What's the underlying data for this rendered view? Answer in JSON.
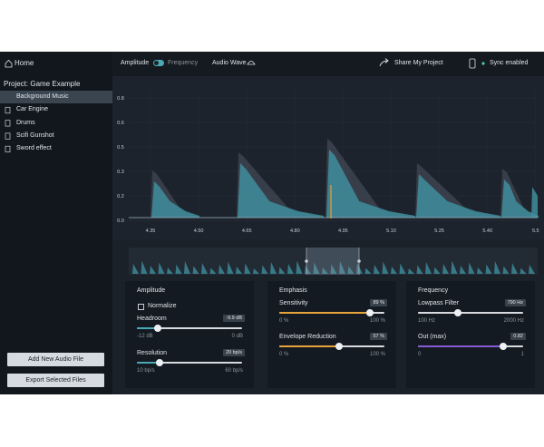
{
  "sidebar": {
    "home": "Home",
    "project": "Project: Game Example",
    "files": [
      "Background Music",
      "Car Engine",
      "Drums",
      "Scifi Gunshot",
      "Sword effect"
    ],
    "buttons": [
      "Add New Audio File",
      "Export Selected Files"
    ]
  },
  "toolbar": {
    "amplitude": "Amplitude",
    "frequency": "Frequency",
    "audio_wave": "Audio Wave",
    "share": "Share My Project",
    "sync": "Sync enabled"
  },
  "waveform": {
    "y_labels": [
      "0.8",
      "0.6",
      "0.5",
      "0.3",
      "0.2",
      "0.0"
    ],
    "x_labels": [
      "4.35",
      "4.50",
      "4.65",
      "4.80",
      "4.95",
      "5.10",
      "5.25",
      "5.40",
      "5.5"
    ]
  },
  "panels": [
    {
      "title": "Amplitude",
      "checkbox": "Normalize",
      "controls": [
        {
          "label": "Headroom",
          "value": "-9.9 dB",
          "min": "-12 dB",
          "max": "0 dB"
        },
        {
          "label": "Resolution",
          "value": "20 bp/s",
          "min": "10 bp/s",
          "max": "60 bp/s"
        }
      ]
    },
    {
      "title": "Emphasis",
      "controls": [
        {
          "label": "Sensitivity",
          "value": "89 %",
          "min": "0 %",
          "max": "100 %"
        },
        {
          "label": "Envelope Reduction",
          "value": "57 %",
          "min": "0 %",
          "max": "100 %"
        }
      ]
    },
    {
      "title": "Frequency",
      "controls": [
        {
          "label": "Lowpass Filter",
          "value": "790 Hz",
          "min": "100 Hz",
          "max": "2000 Hz"
        },
        {
          "label": "Out (max)",
          "value": "0.82",
          "min": "0",
          "max": "1"
        }
      ]
    }
  ]
}
